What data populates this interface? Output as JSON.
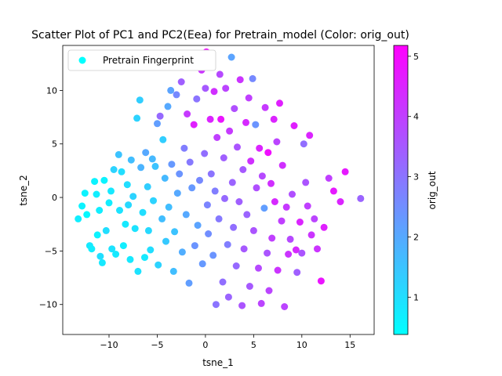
{
  "chart_data": {
    "type": "scatter",
    "title": "Scatter Plot of PC1 and PC2(Eea) for Pretrain_model (Color: orig_out)",
    "xlabel": "tsne_1",
    "ylabel": "tsne_2",
    "xlim": [
      -14.8,
      17.5
    ],
    "ylim": [
      -12.8,
      14.2
    ],
    "x_ticks": [
      -10,
      -5,
      0,
      5,
      10,
      15
    ],
    "y_ticks": [
      -10,
      -5,
      0,
      5,
      10
    ],
    "grid": false,
    "legend_position": "top-left",
    "series": [
      {
        "name": "Pretrain Fingerprint",
        "colormap": "cool",
        "color_field": "orig_out",
        "legend_color": "#00ffff",
        "points": [
          [
            -13.2,
            -2.0,
            0.7
          ],
          [
            -12.8,
            -0.8,
            0.6
          ],
          [
            -12.5,
            0.4,
            0.6
          ],
          [
            -12.3,
            -1.6,
            0.5
          ],
          [
            -12.0,
            -4.5,
            0.8
          ],
          [
            -11.8,
            -4.8,
            0.7
          ],
          [
            -11.5,
            1.5,
            0.6
          ],
          [
            -11.3,
            0.3,
            0.7
          ],
          [
            -11.2,
            -3.5,
            0.6
          ],
          [
            -11.0,
            -1.2,
            0.7
          ],
          [
            -10.9,
            -5.5,
            1.0
          ],
          [
            -10.7,
            -6.1,
            0.8
          ],
          [
            -10.5,
            1.6,
            0.6
          ],
          [
            -10.3,
            -3.1,
            1.0
          ],
          [
            -10.0,
            -0.5,
            0.7
          ],
          [
            -9.8,
            0.6,
            0.8
          ],
          [
            -9.7,
            -4.8,
            0.9
          ],
          [
            -9.5,
            2.6,
            1.2
          ],
          [
            -9.3,
            -5.3,
            0.8
          ],
          [
            -9.0,
            4.0,
            1.5
          ],
          [
            -8.9,
            -1.2,
            0.9
          ],
          [
            -8.7,
            2.4,
            1.0
          ],
          [
            -8.5,
            -4.5,
            0.7
          ],
          [
            -8.3,
            -2.5,
            0.8
          ],
          [
            -8.1,
            1.2,
            1.0
          ],
          [
            -8.0,
            -0.7,
            1.1
          ],
          [
            -7.8,
            -5.8,
            0.8
          ],
          [
            -7.7,
            3.5,
            1.6
          ],
          [
            -7.5,
            0.1,
            1.2
          ],
          [
            -7.3,
            -2.9,
            0.9
          ],
          [
            -7.1,
            7.4,
            1.2
          ],
          [
            -7.0,
            -6.9,
            0.9
          ],
          [
            -6.8,
            9.1,
            1.3
          ],
          [
            -6.7,
            2.8,
            1.8
          ],
          [
            -6.5,
            -1.4,
            1.0
          ],
          [
            -6.3,
            -5.6,
            0.8
          ],
          [
            -6.2,
            4.2,
            2.0
          ],
          [
            -6.0,
            1.0,
            1.3
          ],
          [
            -5.9,
            -3.1,
            1.1
          ],
          [
            -5.7,
            -4.9,
            1.0
          ],
          [
            -5.5,
            3.6,
            1.7
          ],
          [
            -5.4,
            -0.3,
            1.2
          ],
          [
            -5.2,
            2.9,
            1.5
          ],
          [
            -5.0,
            6.9,
            2.2
          ],
          [
            -4.9,
            -6.3,
            1.2
          ],
          [
            -4.7,
            7.6,
            3.2
          ],
          [
            -4.5,
            -2.0,
            1.6
          ],
          [
            -4.4,
            5.4,
            1.3
          ],
          [
            -4.2,
            1.8,
            1.7
          ],
          [
            -4.1,
            -4.1,
            1.4
          ],
          [
            -3.9,
            8.5,
            2.0
          ],
          [
            -3.8,
            -0.9,
            1.6
          ],
          [
            -3.6,
            10.0,
            2.1
          ],
          [
            -3.5,
            3.1,
            2.3
          ],
          [
            -3.3,
            -6.9,
            1.6
          ],
          [
            -3.2,
            -3.2,
            1.5
          ],
          [
            -3.0,
            9.6,
            2.6
          ],
          [
            -2.9,
            0.4,
            2.0
          ],
          [
            -2.7,
            2.2,
            2.4
          ],
          [
            -2.5,
            10.8,
            3.4
          ],
          [
            -2.4,
            -5.1,
            1.9
          ],
          [
            -2.2,
            4.6,
            2.8
          ],
          [
            -2.0,
            -1.6,
            2.0
          ],
          [
            -1.9,
            7.8,
            4.1
          ],
          [
            -1.7,
            -8.0,
            2.2
          ],
          [
            -1.6,
            3.3,
            2.9
          ],
          [
            -1.4,
            0.9,
            2.3
          ],
          [
            -1.2,
            6.8,
            4.6
          ],
          [
            -1.1,
            -4.5,
            2.4
          ],
          [
            -0.9,
            9.2,
            3.0
          ],
          [
            -0.8,
            -2.6,
            2.1
          ],
          [
            -0.6,
            1.6,
            2.6
          ],
          [
            -0.4,
            11.9,
            4.2
          ],
          [
            -0.3,
            -6.2,
            2.3
          ],
          [
            -0.1,
            4.1,
            3.1
          ],
          [
            0.0,
            10.2,
            3.5
          ],
          [
            0.1,
            13.6,
            4.9
          ],
          [
            0.2,
            -0.7,
            2.7
          ],
          [
            0.3,
            -3.4,
            2.5
          ],
          [
            0.5,
            7.3,
            4.5
          ],
          [
            0.6,
            2.2,
            3.0
          ],
          [
            0.8,
            -5.4,
            2.4
          ],
          [
            0.9,
            9.9,
            4.3
          ],
          [
            1.0,
            0.6,
            2.8
          ],
          [
            1.1,
            -10.0,
            3.0
          ],
          [
            1.2,
            5.6,
            4.0
          ],
          [
            1.4,
            -2.0,
            2.9
          ],
          [
            1.5,
            11.5,
            3.8
          ],
          [
            1.6,
            7.3,
            4.8
          ],
          [
            1.8,
            -7.9,
            3.1
          ],
          [
            1.9,
            3.7,
            3.4
          ],
          [
            2.0,
            -0.1,
            3.2
          ],
          [
            2.1,
            10.2,
            3.9
          ],
          [
            2.3,
            -4.4,
            2.8
          ],
          [
            2.4,
            -9.3,
            3.3
          ],
          [
            2.5,
            6.2,
            4.1
          ],
          [
            2.7,
            13.1,
            2.1
          ],
          [
            2.8,
            1.4,
            3.3
          ],
          [
            2.9,
            -2.8,
            3.1
          ],
          [
            3.0,
            8.3,
            3.7
          ],
          [
            3.2,
            -6.4,
            3.2
          ],
          [
            3.3,
            4.7,
            3.6
          ],
          [
            3.5,
            -0.4,
            3.4
          ],
          [
            3.6,
            11.0,
            4.2
          ],
          [
            3.8,
            -10.1,
            3.6
          ],
          [
            3.9,
            2.6,
            3.5
          ],
          [
            4.0,
            -4.8,
            3.5
          ],
          [
            4.2,
            7.0,
            4.4
          ],
          [
            4.3,
            -1.6,
            3.3
          ],
          [
            4.5,
            9.3,
            4.0
          ],
          [
            4.6,
            -8.3,
            3.5
          ],
          [
            4.7,
            3.4,
            4.3
          ],
          [
            4.9,
            11.1,
            2.6
          ],
          [
            5.0,
            -3.1,
            3.6
          ],
          [
            5.2,
            6.8,
            2.4
          ],
          [
            5.3,
            0.9,
            3.7
          ],
          [
            5.5,
            -6.6,
            3.8
          ],
          [
            5.6,
            4.6,
            4.5
          ],
          [
            5.8,
            -9.9,
            3.9
          ],
          [
            5.9,
            2.0,
            3.8
          ],
          [
            6.1,
            -1.0,
            2.2
          ],
          [
            6.2,
            8.4,
            4.1
          ],
          [
            6.4,
            -5.2,
            3.6
          ],
          [
            6.5,
            4.2,
            4.9
          ],
          [
            6.6,
            -8.7,
            3.9
          ],
          [
            6.8,
            1.3,
            4.3
          ],
          [
            6.9,
            -3.8,
            4.0
          ],
          [
            7.1,
            7.3,
            4.5
          ],
          [
            7.2,
            -0.4,
            4.4
          ],
          [
            7.4,
            5.2,
            3.9
          ],
          [
            7.5,
            -6.8,
            4.2
          ],
          [
            7.7,
            8.8,
            4.6
          ],
          [
            7.9,
            -2.2,
            4.0
          ],
          [
            8.0,
            3.0,
            4.3
          ],
          [
            8.2,
            -10.2,
            3.9
          ],
          [
            8.4,
            -0.9,
            4.1
          ],
          [
            8.6,
            -5.3,
            4.2
          ],
          [
            8.8,
            -3.9,
            3.8
          ],
          [
            9.0,
            0.3,
            3.7
          ],
          [
            9.2,
            6.7,
            4.6
          ],
          [
            9.4,
            -4.9,
            4.4
          ],
          [
            9.5,
            -7.0,
            3.4
          ],
          [
            9.8,
            -2.3,
            4.5
          ],
          [
            10.0,
            -5.2,
            3.6
          ],
          [
            10.2,
            5.0,
            3.1
          ],
          [
            10.4,
            1.4,
            3.6
          ],
          [
            10.6,
            -0.8,
            4.0
          ],
          [
            10.8,
            5.8,
            4.5
          ],
          [
            11.0,
            -3.5,
            4.2
          ],
          [
            11.3,
            -2.0,
            3.9
          ],
          [
            11.6,
            -4.8,
            4.2
          ],
          [
            12.0,
            -7.8,
            4.8
          ],
          [
            12.3,
            -2.8,
            4.6
          ],
          [
            12.8,
            1.8,
            4.0
          ],
          [
            13.3,
            0.6,
            4.7
          ],
          [
            14.0,
            -0.4,
            4.5
          ],
          [
            14.5,
            2.4,
            4.7
          ],
          [
            16.1,
            -0.1,
            3.3
          ]
        ]
      }
    ],
    "colorbar": {
      "label": "orig_out",
      "range": [
        0.38,
        5.18
      ],
      "ticks": [
        1,
        2,
        3,
        4,
        5
      ],
      "colormap": "cool",
      "colors": [
        "#00ffff",
        "#ff00ff"
      ]
    }
  }
}
